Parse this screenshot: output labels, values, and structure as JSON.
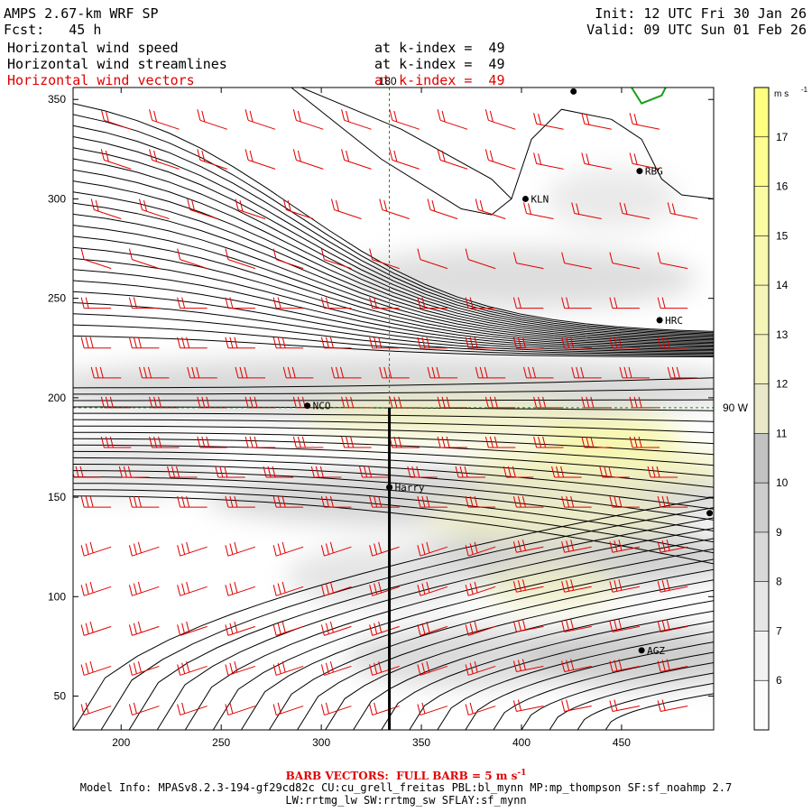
{
  "header": {
    "model": "AMPS 2.67-km WRF SP",
    "init": "Init: 12 UTC Fri 30 Jan 26",
    "fcst": "Fcst:   45 h",
    "valid": "Valid: 09 UTC Sun 01 Feb 26",
    "fields": [
      {
        "name": "Horizontal wind speed",
        "level": "at k-index =  49",
        "color": "#000000"
      },
      {
        "name": "Horizontal wind streamlines",
        "level": "at k-index =  49",
        "color": "#000000"
      },
      {
        "name": "Horizontal wind vectors",
        "level": "at k-index =  49",
        "color": "#e00000"
      }
    ]
  },
  "chart_data": {
    "type": "heatmap",
    "x_ticks": [
      200,
      250,
      300,
      350,
      400,
      450
    ],
    "y_ticks": [
      50,
      100,
      150,
      200,
      250,
      300,
      350
    ],
    "xlim": [
      176,
      496
    ],
    "ylim": [
      33,
      356
    ],
    "colorbar": {
      "unit": "m s",
      "unit_sup": "-1",
      "levels": [
        6,
        7,
        8,
        9,
        10,
        11,
        12,
        13,
        14,
        15,
        16,
        17
      ],
      "colors": [
        "#fcfcfc",
        "#f2f2f2",
        "#e6e6e6",
        "#d9d9d9",
        "#cdcdcd",
        "#c2c2c2",
        "#e9e9c9",
        "#f0f0c0",
        "#f5f5b8",
        "#f8f8ae",
        "#fbfba2",
        "#fdfd90",
        "#ffff80"
      ]
    },
    "guides": {
      "meridian_label": "180",
      "parallel_label": "90 W",
      "meridian_x": 334,
      "parallel_y": 195
    },
    "cross_section": {
      "x": 334,
      "y_from": 33,
      "y_to": 195
    },
    "stations": [
      {
        "name": "KLN",
        "x": 402,
        "y": 300
      },
      {
        "name": "RBG",
        "x": 459,
        "y": 314
      },
      {
        "name": "HRC",
        "x": 469,
        "y": 239
      },
      {
        "name": "NCO",
        "x": 293,
        "y": 196
      },
      {
        "name": "Harry",
        "x": 334,
        "y": 155
      },
      {
        "name": "AGZ",
        "x": 460,
        "y": 73
      },
      {
        "name": "",
        "x": 426,
        "y": 354
      },
      {
        "name": "",
        "x": 494,
        "y": 142
      }
    ]
  },
  "footer": {
    "barb": "BARB VECTORS:  FULL BARB = 5 m s",
    "barb_sup": "-1",
    "model_info": "Model Info: MPASv8.2.3-194-gf29cd82c CU:cu_grell_freitas PBL:bl_mynn MP:mp_thompson SF:sf_noahmp 2.7",
    "model_info2": "LW:rrtmg_lw SW:rrtmg_sw SFLAY:sf_mynn"
  }
}
